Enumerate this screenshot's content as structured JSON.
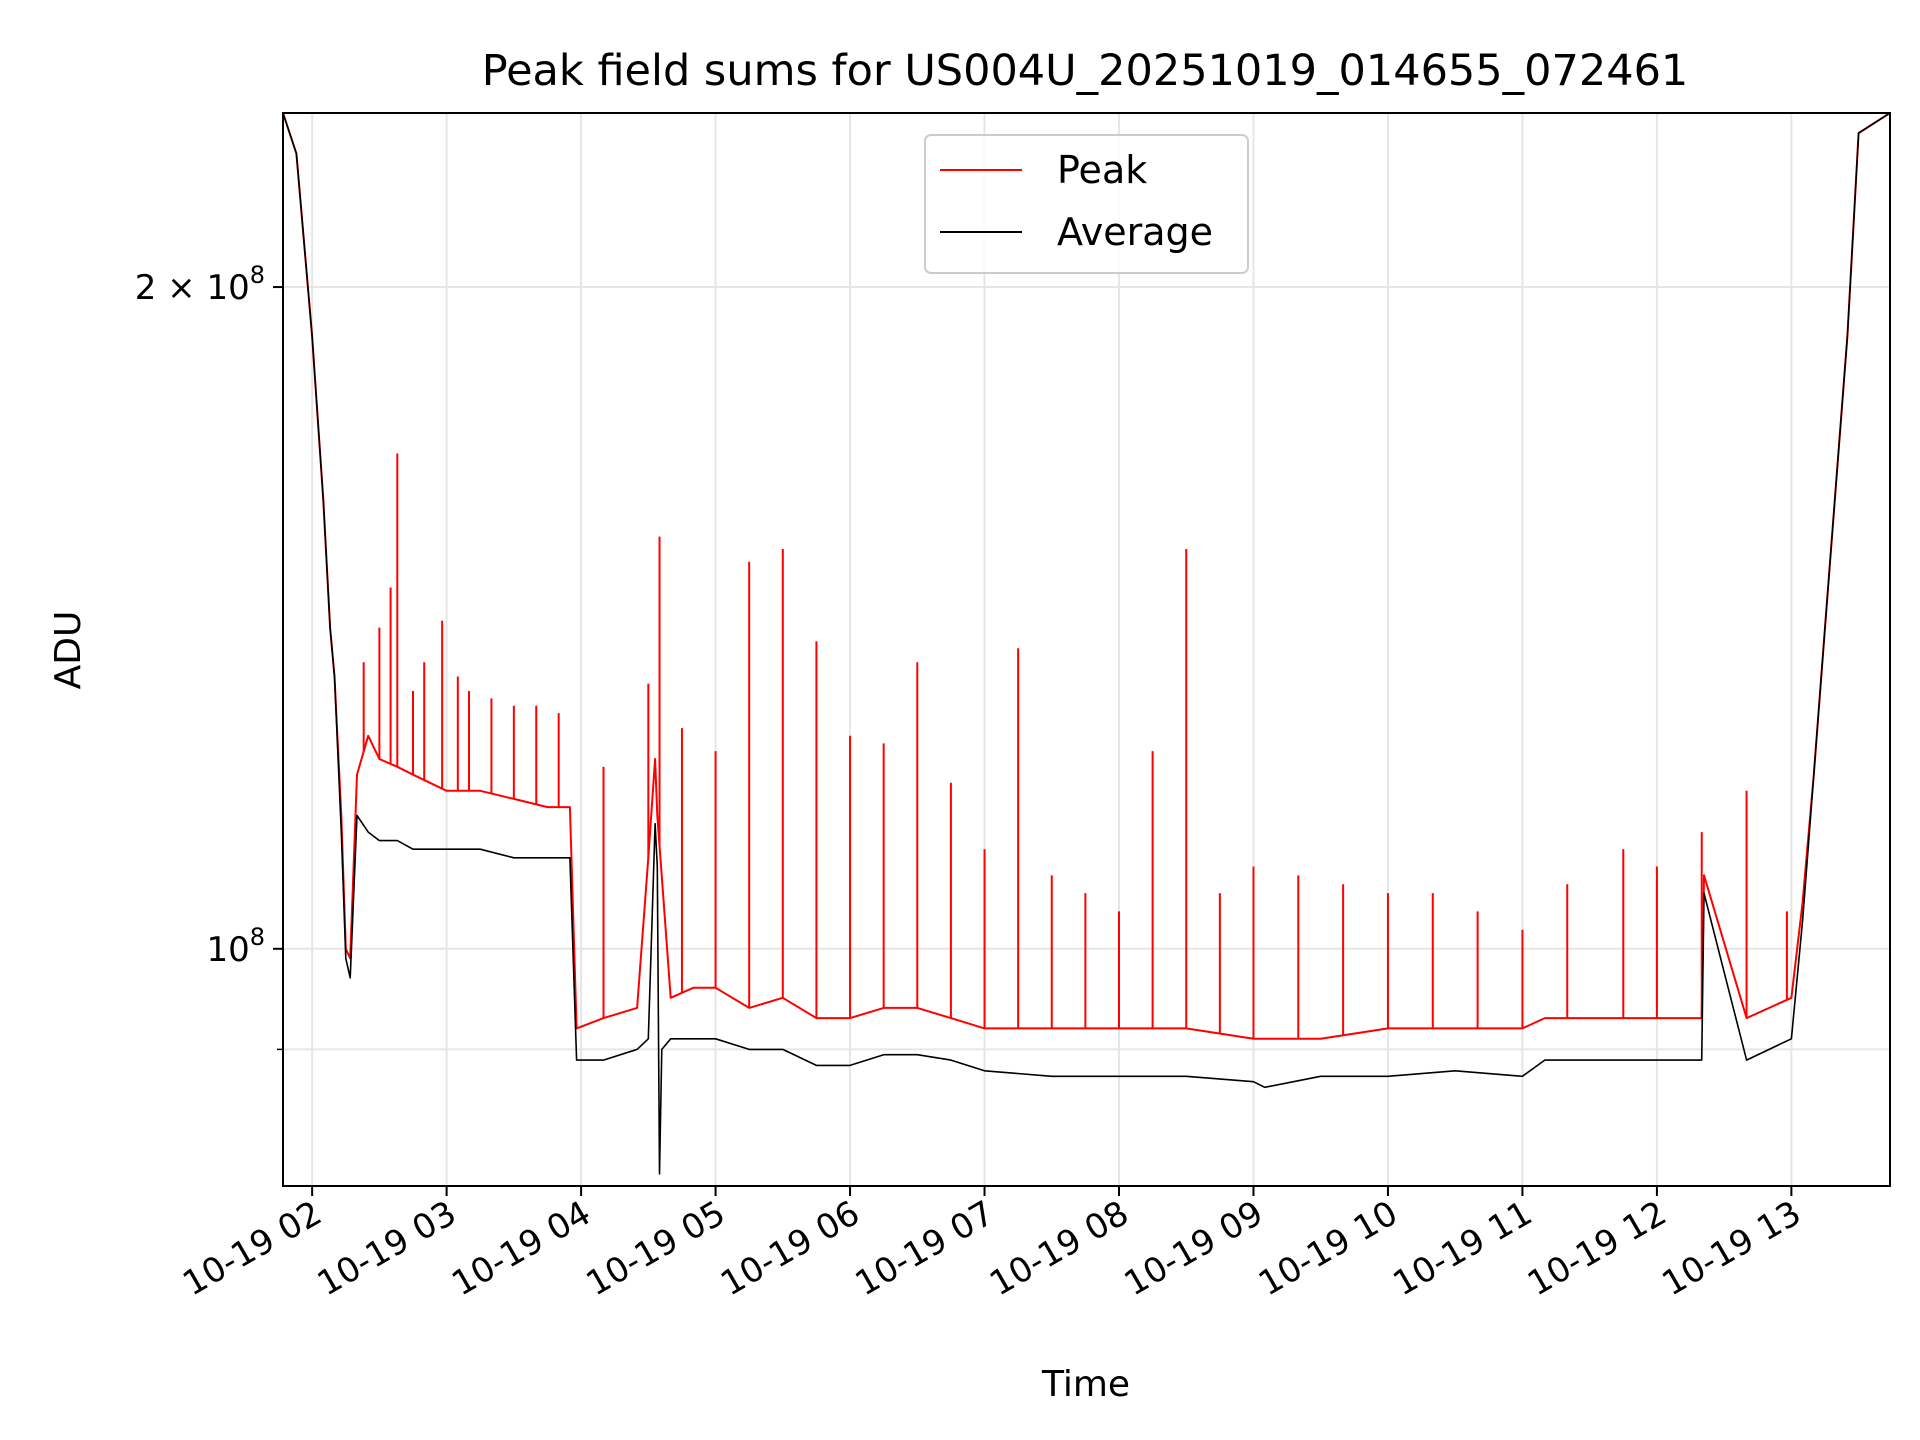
{
  "chart_data": {
    "type": "line",
    "title": "Peak field sums for US004U_20251019_014655_072461",
    "xlabel": "Time",
    "ylabel": "ADU",
    "y_scale": "log",
    "ylim": [
      78000000,
      240000000
    ],
    "xlim": [
      "2025-10-19 01:47",
      "2025-10-19 13:44"
    ],
    "grid": true,
    "legend_position": "upper center",
    "x_ticks": [
      {
        "value": "2025-10-19 02:00",
        "label": "10-19 02"
      },
      {
        "value": "2025-10-19 03:00",
        "label": "10-19 03"
      },
      {
        "value": "2025-10-19 04:00",
        "label": "10-19 04"
      },
      {
        "value": "2025-10-19 05:00",
        "label": "10-19 05"
      },
      {
        "value": "2025-10-19 06:00",
        "label": "10-19 06"
      },
      {
        "value": "2025-10-19 07:00",
        "label": "10-19 07"
      },
      {
        "value": "2025-10-19 08:00",
        "label": "10-19 08"
      },
      {
        "value": "2025-10-19 09:00",
        "label": "10-19 09"
      },
      {
        "value": "2025-10-19 10:00",
        "label": "10-19 10"
      },
      {
        "value": "2025-10-19 11:00",
        "label": "10-19 11"
      },
      {
        "value": "2025-10-19 12:00",
        "label": "10-19 12"
      },
      {
        "value": "2025-10-19 13:00",
        "label": "10-19 13"
      }
    ],
    "y_ticks": [
      {
        "value": 100000000,
        "label_base": "10",
        "label_exp": "8"
      },
      {
        "value": 200000000,
        "label_base": "2 × 10",
        "label_exp": "8"
      }
    ],
    "y_minor_ticks": [
      90000000
    ],
    "series": [
      {
        "name": "Peak",
        "color": "#ff0000",
        "x": [
          "2025-10-19 01:47",
          "2025-10-19 01:53",
          "2025-10-19 02:00",
          "2025-10-19 02:05",
          "2025-10-19 02:08",
          "2025-10-19 02:10",
          "2025-10-19 02:13",
          "2025-10-19 02:15",
          "2025-10-19 02:17",
          "2025-10-19 02:20",
          "2025-10-19 02:25",
          "2025-10-19 02:30",
          "2025-10-19 02:38",
          "2025-10-19 02:45",
          "2025-10-19 03:00",
          "2025-10-19 03:15",
          "2025-10-19 03:30",
          "2025-10-19 03:45",
          "2025-10-19 03:55",
          "2025-10-19 03:58",
          "2025-10-19 04:10",
          "2025-10-19 04:25",
          "2025-10-19 04:30",
          "2025-10-19 04:33",
          "2025-10-19 04:34",
          "2025-10-19 04:40",
          "2025-10-19 04:50",
          "2025-10-19 05:00",
          "2025-10-19 05:15",
          "2025-10-19 05:30",
          "2025-10-19 05:45",
          "2025-10-19 06:00",
          "2025-10-19 06:15",
          "2025-10-19 06:30",
          "2025-10-19 06:45",
          "2025-10-19 07:00",
          "2025-10-19 07:30",
          "2025-10-19 08:00",
          "2025-10-19 08:30",
          "2025-10-19 09:00",
          "2025-10-19 09:30",
          "2025-10-19 10:00",
          "2025-10-19 10:30",
          "2025-10-19 11:00",
          "2025-10-19 11:10",
          "2025-10-19 11:30",
          "2025-10-19 12:00",
          "2025-10-19 12:20",
          "2025-10-19 12:21",
          "2025-10-19 12:40",
          "2025-10-19 13:00",
          "2025-10-19 13:05",
          "2025-10-19 13:10",
          "2025-10-19 13:15",
          "2025-10-19 13:25",
          "2025-10-19 13:30",
          "2025-10-19 13:44"
        ],
        "y": [
          240000000,
          230000000,
          190000000,
          160000000,
          140000000,
          133000000,
          115000000,
          100000000,
          99000000,
          120000000,
          125000000,
          122000000,
          121000000,
          120000000,
          118000000,
          118000000,
          117000000,
          116000000,
          116000000,
          92000000,
          93000000,
          94000000,
          110000000,
          122000000,
          115000000,
          95000000,
          96000000,
          96000000,
          94000000,
          95000000,
          93000000,
          93000000,
          94000000,
          94000000,
          93000000,
          92000000,
          92000000,
          92000000,
          92000000,
          91000000,
          91000000,
          92000000,
          92000000,
          92000000,
          93000000,
          93000000,
          93000000,
          93000000,
          108000000,
          93000000,
          95000000,
          105000000,
          120000000,
          140000000,
          190000000,
          235000000,
          240000000
        ],
        "spikes": [
          {
            "x": "2025-10-19 02:23",
            "y": 135000000
          },
          {
            "x": "2025-10-19 02:30",
            "y": 140000000
          },
          {
            "x": "2025-10-19 02:35",
            "y": 146000000
          },
          {
            "x": "2025-10-19 02:38",
            "y": 168000000
          },
          {
            "x": "2025-10-19 02:45",
            "y": 131000000
          },
          {
            "x": "2025-10-19 02:50",
            "y": 135000000
          },
          {
            "x": "2025-10-19 02:58",
            "y": 141000000
          },
          {
            "x": "2025-10-19 03:05",
            "y": 133000000
          },
          {
            "x": "2025-10-19 03:10",
            "y": 131000000
          },
          {
            "x": "2025-10-19 03:20",
            "y": 130000000
          },
          {
            "x": "2025-10-19 03:30",
            "y": 129000000
          },
          {
            "x": "2025-10-19 03:40",
            "y": 129000000
          },
          {
            "x": "2025-10-19 03:50",
            "y": 128000000
          },
          {
            "x": "2025-10-19 04:10",
            "y": 121000000
          },
          {
            "x": "2025-10-19 04:30",
            "y": 132000000
          },
          {
            "x": "2025-10-19 04:35",
            "y": 154000000
          },
          {
            "x": "2025-10-19 04:45",
            "y": 126000000
          },
          {
            "x": "2025-10-19 05:00",
            "y": 123000000
          },
          {
            "x": "2025-10-19 05:15",
            "y": 150000000
          },
          {
            "x": "2025-10-19 05:30",
            "y": 152000000
          },
          {
            "x": "2025-10-19 05:45",
            "y": 138000000
          },
          {
            "x": "2025-10-19 06:00",
            "y": 125000000
          },
          {
            "x": "2025-10-19 06:15",
            "y": 124000000
          },
          {
            "x": "2025-10-19 06:30",
            "y": 135000000
          },
          {
            "x": "2025-10-19 06:45",
            "y": 119000000
          },
          {
            "x": "2025-10-19 07:00",
            "y": 111000000
          },
          {
            "x": "2025-10-19 07:15",
            "y": 137000000
          },
          {
            "x": "2025-10-19 07:30",
            "y": 108000000
          },
          {
            "x": "2025-10-19 07:45",
            "y": 106000000
          },
          {
            "x": "2025-10-19 08:00",
            "y": 104000000
          },
          {
            "x": "2025-10-19 08:15",
            "y": 123000000
          },
          {
            "x": "2025-10-19 08:30",
            "y": 152000000
          },
          {
            "x": "2025-10-19 08:45",
            "y": 106000000
          },
          {
            "x": "2025-10-19 09:00",
            "y": 109000000
          },
          {
            "x": "2025-10-19 09:20",
            "y": 108000000
          },
          {
            "x": "2025-10-19 09:40",
            "y": 107000000
          },
          {
            "x": "2025-10-19 10:00",
            "y": 106000000
          },
          {
            "x": "2025-10-19 10:20",
            "y": 106000000
          },
          {
            "x": "2025-10-19 10:40",
            "y": 104000000
          },
          {
            "x": "2025-10-19 11:00",
            "y": 102000000
          },
          {
            "x": "2025-10-19 11:20",
            "y": 107000000
          },
          {
            "x": "2025-10-19 11:45",
            "y": 111000000
          },
          {
            "x": "2025-10-19 12:00",
            "y": 109000000
          },
          {
            "x": "2025-10-19 12:20",
            "y": 113000000
          },
          {
            "x": "2025-10-19 12:40",
            "y": 118000000
          },
          {
            "x": "2025-10-19 12:58",
            "y": 104000000
          }
        ]
      },
      {
        "name": "Average",
        "color": "#000000",
        "x": [
          "2025-10-19 01:47",
          "2025-10-19 01:53",
          "2025-10-19 02:00",
          "2025-10-19 02:05",
          "2025-10-19 02:08",
          "2025-10-19 02:10",
          "2025-10-19 02:13",
          "2025-10-19 02:15",
          "2025-10-19 02:17",
          "2025-10-19 02:20",
          "2025-10-19 02:25",
          "2025-10-19 02:30",
          "2025-10-19 02:38",
          "2025-10-19 02:45",
          "2025-10-19 03:00",
          "2025-10-19 03:15",
          "2025-10-19 03:30",
          "2025-10-19 03:45",
          "2025-10-19 03:55",
          "2025-10-19 03:58",
          "2025-10-19 04:10",
          "2025-10-19 04:25",
          "2025-10-19 04:30",
          "2025-10-19 04:33",
          "2025-10-19 04:34",
          "2025-10-19 04:35",
          "2025-10-19 04:36",
          "2025-10-19 04:40",
          "2025-10-19 05:00",
          "2025-10-19 05:15",
          "2025-10-19 05:30",
          "2025-10-19 05:45",
          "2025-10-19 06:00",
          "2025-10-19 06:15",
          "2025-10-19 06:30",
          "2025-10-19 06:45",
          "2025-10-19 07:00",
          "2025-10-19 07:30",
          "2025-10-19 08:00",
          "2025-10-19 08:30",
          "2025-10-19 09:00",
          "2025-10-19 09:05",
          "2025-10-19 09:30",
          "2025-10-19 10:00",
          "2025-10-19 10:30",
          "2025-10-19 11:00",
          "2025-10-19 11:10",
          "2025-10-19 11:30",
          "2025-10-19 12:00",
          "2025-10-19 12:20",
          "2025-10-19 12:21",
          "2025-10-19 12:40",
          "2025-10-19 13:00",
          "2025-10-19 13:05",
          "2025-10-19 13:10",
          "2025-10-19 13:15",
          "2025-10-19 13:25",
          "2025-10-19 13:30",
          "2025-10-19 13:44"
        ],
        "y": [
          240000000,
          230000000,
          190000000,
          160000000,
          140000000,
          133000000,
          113000000,
          99000000,
          97000000,
          115000000,
          113000000,
          112000000,
          112000000,
          111000000,
          111000000,
          111000000,
          110000000,
          110000000,
          110000000,
          89000000,
          89000000,
          90000000,
          91000000,
          114000000,
          109000000,
          79000000,
          90000000,
          91000000,
          91000000,
          90000000,
          90000000,
          88500000,
          88500000,
          89500000,
          89500000,
          89000000,
          88000000,
          87500000,
          87500000,
          87500000,
          87000000,
          86500000,
          87500000,
          87500000,
          88000000,
          87500000,
          89000000,
          89000000,
          89000000,
          89000000,
          106000000,
          89000000,
          91000000,
          103000000,
          120000000,
          140000000,
          190000000,
          235000000,
          240000000
        ]
      }
    ]
  }
}
